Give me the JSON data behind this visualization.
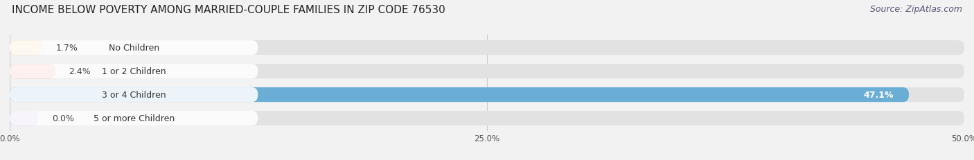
{
  "title": "INCOME BELOW POVERTY AMONG MARRIED-COUPLE FAMILIES IN ZIP CODE 76530",
  "source": "Source: ZipAtlas.com",
  "categories": [
    "No Children",
    "1 or 2 Children",
    "3 or 4 Children",
    "5 or more Children"
  ],
  "values": [
    1.7,
    2.4,
    47.1,
    0.0
  ],
  "bar_colors": [
    "#f5c98a",
    "#f0958a",
    "#6aaed6",
    "#c4aee0"
  ],
  "background_color": "#f2f2f2",
  "bar_bg_color": "#e2e2e2",
  "xlim": [
    0,
    50
  ],
  "xticks": [
    0.0,
    25.0,
    50.0
  ],
  "xtick_labels": [
    "0.0%",
    "25.0%",
    "50.0%"
  ],
  "title_fontsize": 11,
  "source_fontsize": 9,
  "label_fontsize": 9,
  "value_fontsize": 9
}
